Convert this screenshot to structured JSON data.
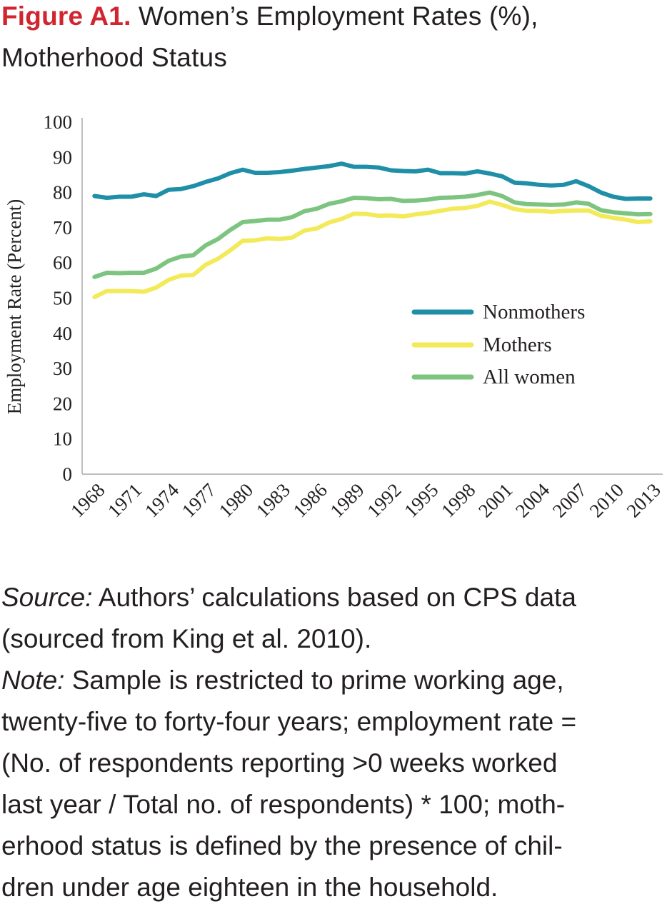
{
  "figure": {
    "label": "Figure A1.",
    "title_line1": "Women’s Employment Rates (%),",
    "title_line2": "Motherhood Status"
  },
  "notes": {
    "source_label": "Source:",
    "source_line1": "Authors’ calculations based on CPS data",
    "source_line2": "(sourced from King et al. 2010).",
    "note_label": "Note:",
    "note_line1": "Sample is restricted to prime working age,",
    "note_line2": "twenty-five to forty-four years; employment rate =",
    "note_line3": "(No. of respondents reporting >0 weeks worked",
    "note_line4": "last year / Total no. of respondents) * 100; moth-",
    "note_line5": "erhood status is defined by the presence of chil-",
    "note_line6": "dren under age eighteen in the household."
  },
  "chart_data": {
    "type": "line",
    "ylabel": "Employment Rate (Percent)",
    "ylim": [
      0,
      100
    ],
    "yticks": [
      0,
      10,
      20,
      30,
      40,
      50,
      60,
      70,
      80,
      90,
      100
    ],
    "xlim": [
      1967,
      2014
    ],
    "xticks": [
      "1968",
      "1971",
      "1974",
      "1977",
      "1980",
      "1983",
      "1986",
      "1989",
      "1992",
      "1995",
      "1998",
      "2001",
      "2004",
      "2007",
      "2010",
      "2013"
    ],
    "x": [
      1968,
      1969,
      1970,
      1971,
      1972,
      1973,
      1974,
      1975,
      1976,
      1977,
      1978,
      1979,
      1980,
      1981,
      1982,
      1983,
      1984,
      1985,
      1986,
      1987,
      1988,
      1989,
      1990,
      1991,
      1992,
      1993,
      1994,
      1995,
      1996,
      1997,
      1998,
      1999,
      2000,
      2001,
      2002,
      2003,
      2004,
      2005,
      2006,
      2007,
      2008,
      2009,
      2010,
      2011,
      2012,
      2013
    ],
    "legend_position": "center-right",
    "grid": false,
    "series": [
      {
        "name": "Nonmothers",
        "color": "#1e8fa6",
        "values": [
          79.0,
          78.5,
          78.8,
          78.8,
          79.5,
          79.0,
          80.8,
          81.0,
          81.8,
          83.0,
          84.0,
          85.5,
          86.5,
          85.6,
          85.6,
          85.8,
          86.2,
          86.7,
          87.1,
          87.5,
          88.2,
          87.3,
          87.3,
          87.1,
          86.3,
          86.1,
          86.0,
          86.5,
          85.5,
          85.5,
          85.4,
          86.0,
          85.4,
          84.6,
          82.8,
          82.6,
          82.2,
          82.0,
          82.2,
          83.2,
          81.8,
          80.0,
          78.8,
          78.2,
          78.3,
          78.3
        ]
      },
      {
        "name": "Mothers",
        "color": "#f3ea5a",
        "values": [
          50.3,
          52.0,
          52.0,
          52.0,
          51.8,
          53.0,
          55.2,
          56.4,
          56.6,
          59.5,
          61.2,
          63.6,
          66.3,
          66.4,
          67.0,
          66.8,
          67.2,
          69.2,
          69.8,
          71.5,
          72.5,
          74.0,
          73.9,
          73.4,
          73.5,
          73.2,
          73.8,
          74.2,
          74.8,
          75.4,
          75.6,
          76.2,
          77.4,
          76.5,
          75.3,
          74.8,
          74.8,
          74.5,
          74.8,
          74.9,
          74.9,
          73.4,
          72.8,
          72.3,
          71.6,
          71.8
        ]
      },
      {
        "name": "All women",
        "color": "#7cc47f",
        "values": [
          56.0,
          57.2,
          57.1,
          57.2,
          57.2,
          58.4,
          60.6,
          61.8,
          62.2,
          65.0,
          66.8,
          69.4,
          71.6,
          71.9,
          72.3,
          72.3,
          73.0,
          74.7,
          75.4,
          76.8,
          77.5,
          78.5,
          78.4,
          78.1,
          78.2,
          77.6,
          77.7,
          78.0,
          78.5,
          78.6,
          78.8,
          79.3,
          80.0,
          79.0,
          77.2,
          76.7,
          76.6,
          76.5,
          76.6,
          77.2,
          76.8,
          75.0,
          74.4,
          74.1,
          73.8,
          73.9
        ]
      }
    ]
  }
}
